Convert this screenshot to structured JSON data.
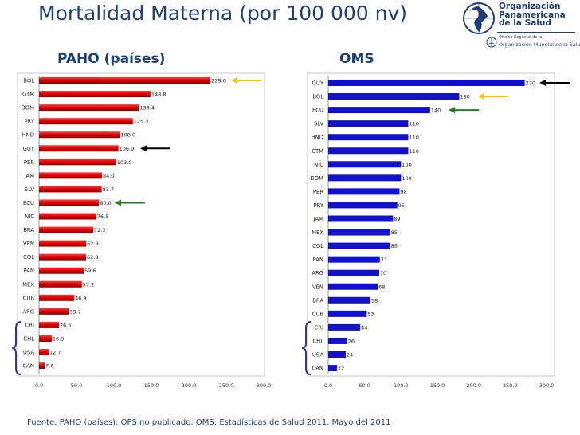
{
  "title": "Mortalidad Materna (por 100 000 nv)",
  "logo": {
    "name_lines": [
      "Organización",
      "Panamericana",
      "de la Salud"
    ],
    "sub1": "Oficina Regional de la",
    "sub2": "Organización Mundial de la Salud"
  },
  "footer": "Fuente: PAHO (países): OPS no publicado; OMS: Estadísticas de Salud 2011.  Mayo del 2011",
  "colors": {
    "paho_bar": "#dd0000",
    "oms_bar": "#1212cc",
    "title": "#1f3f7a",
    "arrow_black": "#000000",
    "arrow_yellow": "#f2c400",
    "arrow_green": "#208020"
  },
  "chart_data": [
    {
      "type": "bar",
      "orientation": "horizontal",
      "title": "PAHO (países)",
      "categories": [
        "BOL",
        "GTM",
        "DOM",
        "PRY",
        "HND",
        "GUY",
        "PER",
        "JAM",
        "SLV",
        "ECU",
        "NIC",
        "BRA",
        "VEN",
        "COL",
        "PAN",
        "MEX",
        "CUB",
        "ARG",
        "CRI",
        "CHL",
        "USA",
        "CAN"
      ],
      "values": [
        229.0,
        148.8,
        133.4,
        125.3,
        108.0,
        106.0,
        103.0,
        84.0,
        83.7,
        80.0,
        76.5,
        72.3,
        62.9,
        62.8,
        59.6,
        57.2,
        46.9,
        39.7,
        26.6,
        16.9,
        12.7,
        7.6
      ],
      "value_labels": [
        "229.0",
        "148.8",
        "133.4",
        "125.3",
        "108.0",
        "106.0",
        "103.0",
        "84.0",
        "83.7",
        "80.0",
        "76.5",
        "72.3",
        "62.9",
        "62.8",
        "59.6",
        "57.2",
        "46.9",
        "39.7",
        "26.6",
        "16.9",
        "12.7",
        "7.6"
      ],
      "xlim": [
        0,
        300
      ],
      "xticks": [
        0,
        50,
        100,
        150,
        200,
        250,
        300
      ],
      "xtick_labels": [
        "0.0",
        "50.0",
        "100.0",
        "150.0",
        "200.0",
        "250.0",
        "300.0"
      ],
      "arrows": [
        {
          "category": "BOL",
          "color": "yellow"
        },
        {
          "category": "GUY",
          "color": "black"
        },
        {
          "category": "ECU",
          "color": "green"
        }
      ],
      "brace_categories": [
        "CRI",
        "CHL",
        "USA",
        "CAN"
      ]
    },
    {
      "type": "bar",
      "orientation": "horizontal",
      "title": "OMS",
      "categories": [
        "GUY",
        "BOL",
        "ECU",
        "SLV",
        "HND",
        "GTM",
        "NIC",
        "DOM",
        "PER",
        "PRY",
        "JAM",
        "MEX",
        "COL",
        "PAN",
        "ARG",
        "VEN",
        "BRA",
        "CUB",
        "CRI",
        "CHL",
        "USA",
        "CAN"
      ],
      "values": [
        270,
        180,
        140,
        110,
        110,
        110,
        100,
        100,
        98,
        95,
        89,
        85,
        85,
        71,
        70,
        68,
        58,
        53,
        44,
        26,
        24,
        12
      ],
      "value_labels": [
        "270",
        "180",
        "140",
        "110",
        "110",
        "110",
        "100",
        "100",
        "98",
        "95",
        "89",
        "85",
        "85",
        "71",
        "70",
        "68",
        "58",
        "53",
        "44",
        "26",
        "24",
        "12"
      ],
      "xlim": [
        0,
        300
      ],
      "xticks": [
        0,
        50,
        100,
        150,
        200,
        250,
        300
      ],
      "xtick_labels": [
        "0.0",
        "50.0",
        "100.0",
        "150.0",
        "200.0",
        "250.0",
        "300.0"
      ],
      "arrows": [
        {
          "category": "GUY",
          "color": "black"
        },
        {
          "category": "BOL",
          "color": "yellow"
        },
        {
          "category": "ECU",
          "color": "green"
        }
      ],
      "brace_categories": [
        "CRI",
        "CHL",
        "USA",
        "CAN"
      ]
    }
  ]
}
